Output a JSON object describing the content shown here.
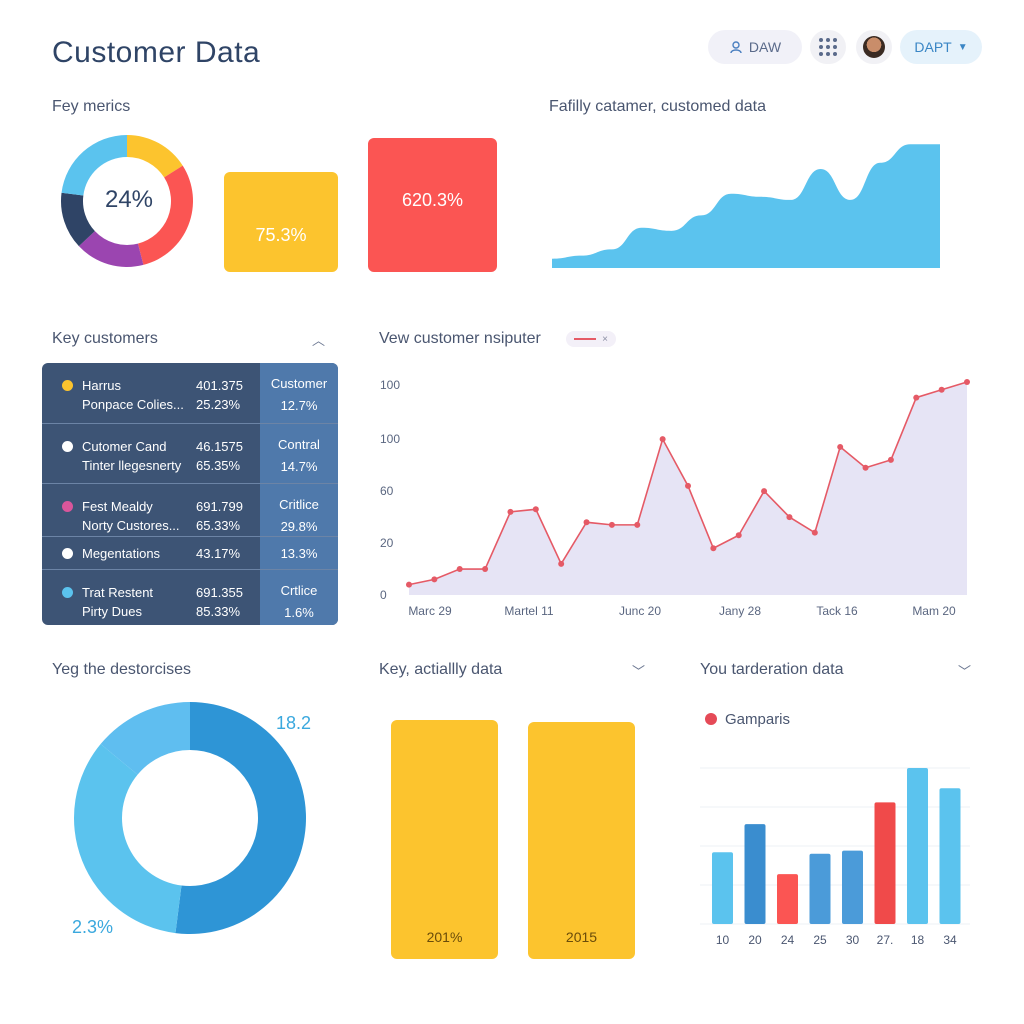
{
  "header": {
    "title": "Customer Data",
    "daw_label": "DAW",
    "dapt_label": "DAPT"
  },
  "metrics": {
    "section_title": "Fey merics",
    "donut_center": "24%",
    "yellow_tile": "75.3%",
    "red_tile": "620.3%",
    "donut_segments": [
      {
        "color": "#fcc42e",
        "value": 16
      },
      {
        "color": "#fb5553",
        "value": 30
      },
      {
        "color": "#9b45b0",
        "value": 17
      },
      {
        "color": "#2f4466",
        "value": 14
      },
      {
        "color": "#5bc3ee",
        "value": 23
      }
    ]
  },
  "family_chart": {
    "title": "Fafilly catamer, customed data",
    "color": "#5bc3ee",
    "values": [
      3,
      4,
      6,
      13,
      12,
      17,
      24,
      23,
      22,
      32,
      22,
      34,
      40,
      40
    ]
  },
  "key_customers": {
    "title": "Key customers",
    "rows": [
      {
        "dot": "#fcc42e",
        "name1": "Harrus",
        "val1": "401.375",
        "name2": "Ponpace Colies...",
        "val2": "25.23%",
        "right1": "Customer",
        "right2": "12.7%"
      },
      {
        "dot": "#ffffff",
        "name1": "Cutomer Cand",
        "val1": "46.1575",
        "name2": "Tinter llegesnerty",
        "val2": "65.35%",
        "right1": "Contral",
        "right2": "14.7%"
      },
      {
        "dot": "#d9569b",
        "name1": "Fest Mealdy",
        "val1": "691.799",
        "name2": "Norty Custores...",
        "val2": "65.33%",
        "right1": "Critlice",
        "right2": "29.8%"
      },
      {
        "dot": "#ffffff",
        "name1": "Megentations",
        "val1": "43.17%",
        "name2": "",
        "val2": "",
        "right1": "",
        "right2": "13.3%"
      },
      {
        "dot": "#5bc3ee",
        "name1": "Trat Restent",
        "val1": "691.355",
        "name2": "Pirty Dues",
        "val2": "85.33%",
        "right1": "Crtlice",
        "right2": "1.6%"
      }
    ]
  },
  "view_chart": {
    "title": "Vew customer nsiputer",
    "legend_close": "×"
  },
  "chart_data": [
    {
      "type": "line",
      "title": "Vew customer nsiputer",
      "y_tick_labels": [
        "0",
        "20",
        "60",
        "100",
        "100"
      ],
      "x_tick_labels": [
        "Marc 29",
        "Martel 11",
        "Junc 20",
        "Jany 28",
        "Tack 16",
        "Mam 20"
      ],
      "series": [
        {
          "color": "#e55a66",
          "values": [
            4,
            6,
            10,
            10,
            32,
            33,
            12,
            28,
            27,
            27,
            60,
            42,
            18,
            23,
            40,
            30,
            24,
            57,
            49,
            52,
            76,
            79,
            82
          ]
        }
      ],
      "fill": "#e6e4f5"
    },
    {
      "type": "bar",
      "title": "You tarderation data",
      "categories": [
        "10",
        "20",
        "24",
        "25",
        "30",
        "27.",
        "18",
        "34"
      ],
      "series": [
        {
          "name": "Gamparis",
          "values": [
            46,
            64,
            32,
            45,
            47,
            78,
            100,
            87
          ]
        }
      ],
      "colors": [
        "#5bc3ee",
        "#3a8dcf",
        "#fb5553",
        "#4b9bd9",
        "#4b9bd9",
        "#f04a4a",
        "#5bc3ee",
        "#5bc3ee"
      ],
      "legend": "top-left"
    }
  ],
  "destorcises": {
    "title": "Yeg the destorcises",
    "label_top": "18.2",
    "label_bottom": "2.3%",
    "segments": [
      {
        "color": "#2e95d6",
        "value": 52
      },
      {
        "color": "#5bc3ee",
        "value": 34
      },
      {
        "color": "#5fbef0",
        "value": 14
      }
    ]
  },
  "actially": {
    "title": "Key, actiallly data",
    "bars": [
      {
        "label": "201%"
      },
      {
        "label": "2015"
      }
    ]
  }
}
